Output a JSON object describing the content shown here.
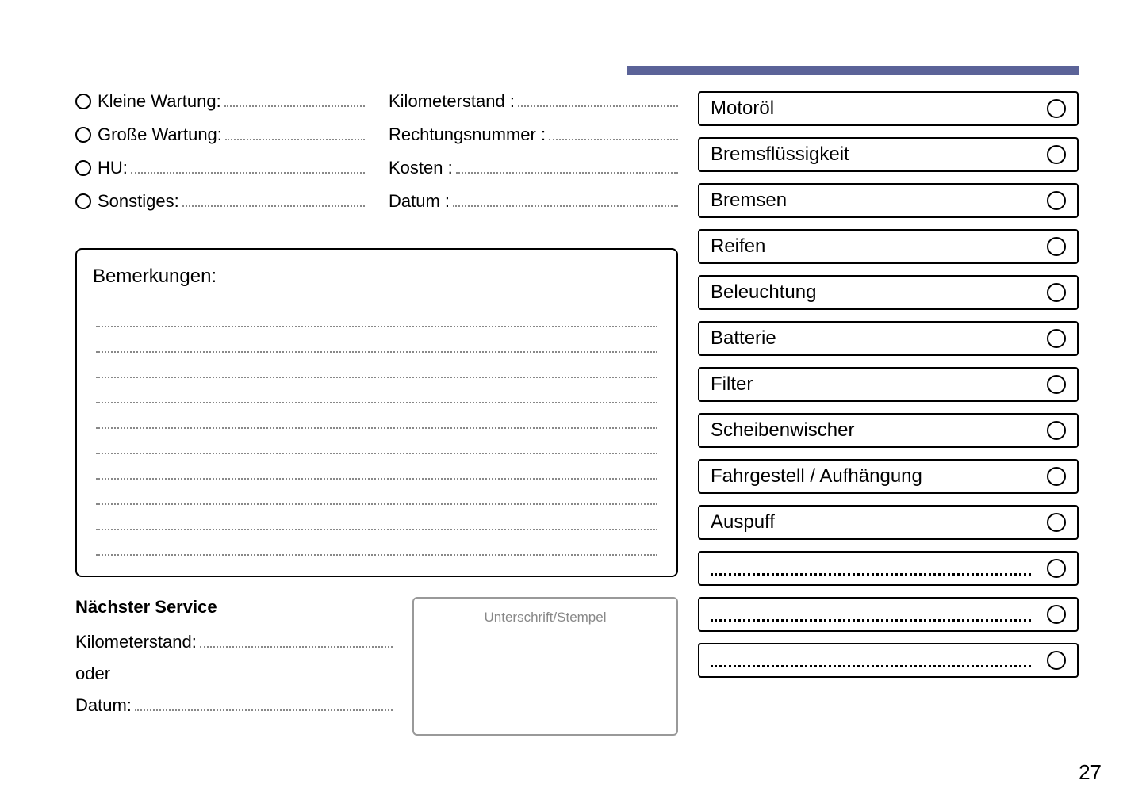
{
  "topBar": {
    "color": "#5b6398"
  },
  "leftFields": [
    {
      "label": "Kleine Wartung:",
      "hasRadio": true
    },
    {
      "label": "Große Wartung:",
      "hasRadio": true
    },
    {
      "label": "HU:",
      "hasRadio": true
    },
    {
      "label": "Sonstiges:",
      "hasRadio": true
    }
  ],
  "rightFields": [
    {
      "label": "Kilometerstand :"
    },
    {
      "label": "Rechtungsnummer :"
    },
    {
      "label": "Kosten :"
    },
    {
      "label": "Datum :"
    }
  ],
  "remarks": {
    "title": "Bemerkungen:",
    "lineCount": 10
  },
  "nextService": {
    "title": "Nächster Service",
    "kmLabel": "Kilometerstand:",
    "orLabel": "oder",
    "dateLabel": "Datum:"
  },
  "stamp": {
    "label": "Unterschrift/Stempel"
  },
  "checklist": [
    {
      "label": "Motoröl",
      "blank": false
    },
    {
      "label": "Bremsflüssigkeit",
      "blank": false
    },
    {
      "label": "Bremsen",
      "blank": false
    },
    {
      "label": "Reifen",
      "blank": false
    },
    {
      "label": "Beleuchtung",
      "blank": false
    },
    {
      "label": "Batterie",
      "blank": false
    },
    {
      "label": "Filter",
      "blank": false
    },
    {
      "label": "Scheibenwischer",
      "blank": false
    },
    {
      "label": "Fahrgestell / Aufhängung",
      "blank": false
    },
    {
      "label": "Auspuff",
      "blank": false
    },
    {
      "label": "",
      "blank": true
    },
    {
      "label": "",
      "blank": true
    },
    {
      "label": "",
      "blank": true
    }
  ],
  "pageNumber": "27"
}
